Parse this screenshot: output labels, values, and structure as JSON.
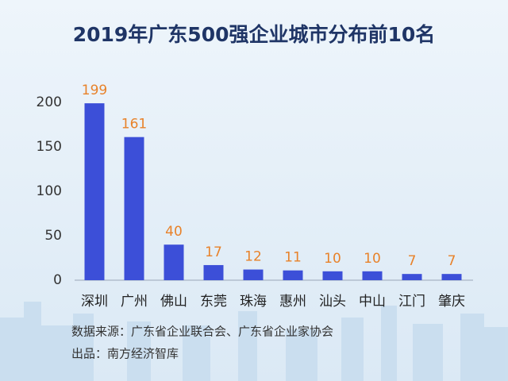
{
  "chart_data": {
    "type": "bar",
    "title": "2019年广东500强企业城市分布前10名",
    "categories": [
      "深圳",
      "广州",
      "佛山",
      "东莞",
      "珠海",
      "惠州",
      "汕头",
      "中山",
      "江门",
      "肇庆"
    ],
    "values": [
      199,
      161,
      40,
      17,
      12,
      11,
      10,
      10,
      7,
      7
    ],
    "color": "#3c4fd8",
    "label_color": "#e8822a",
    "ylim": [
      0,
      210
    ],
    "yticks": [
      0,
      50,
      100,
      150,
      200
    ],
    "grid": false,
    "source": "数据来源：广东省企业联合会、广东省企业家协会",
    "producer": "出品：南方经济智库"
  }
}
